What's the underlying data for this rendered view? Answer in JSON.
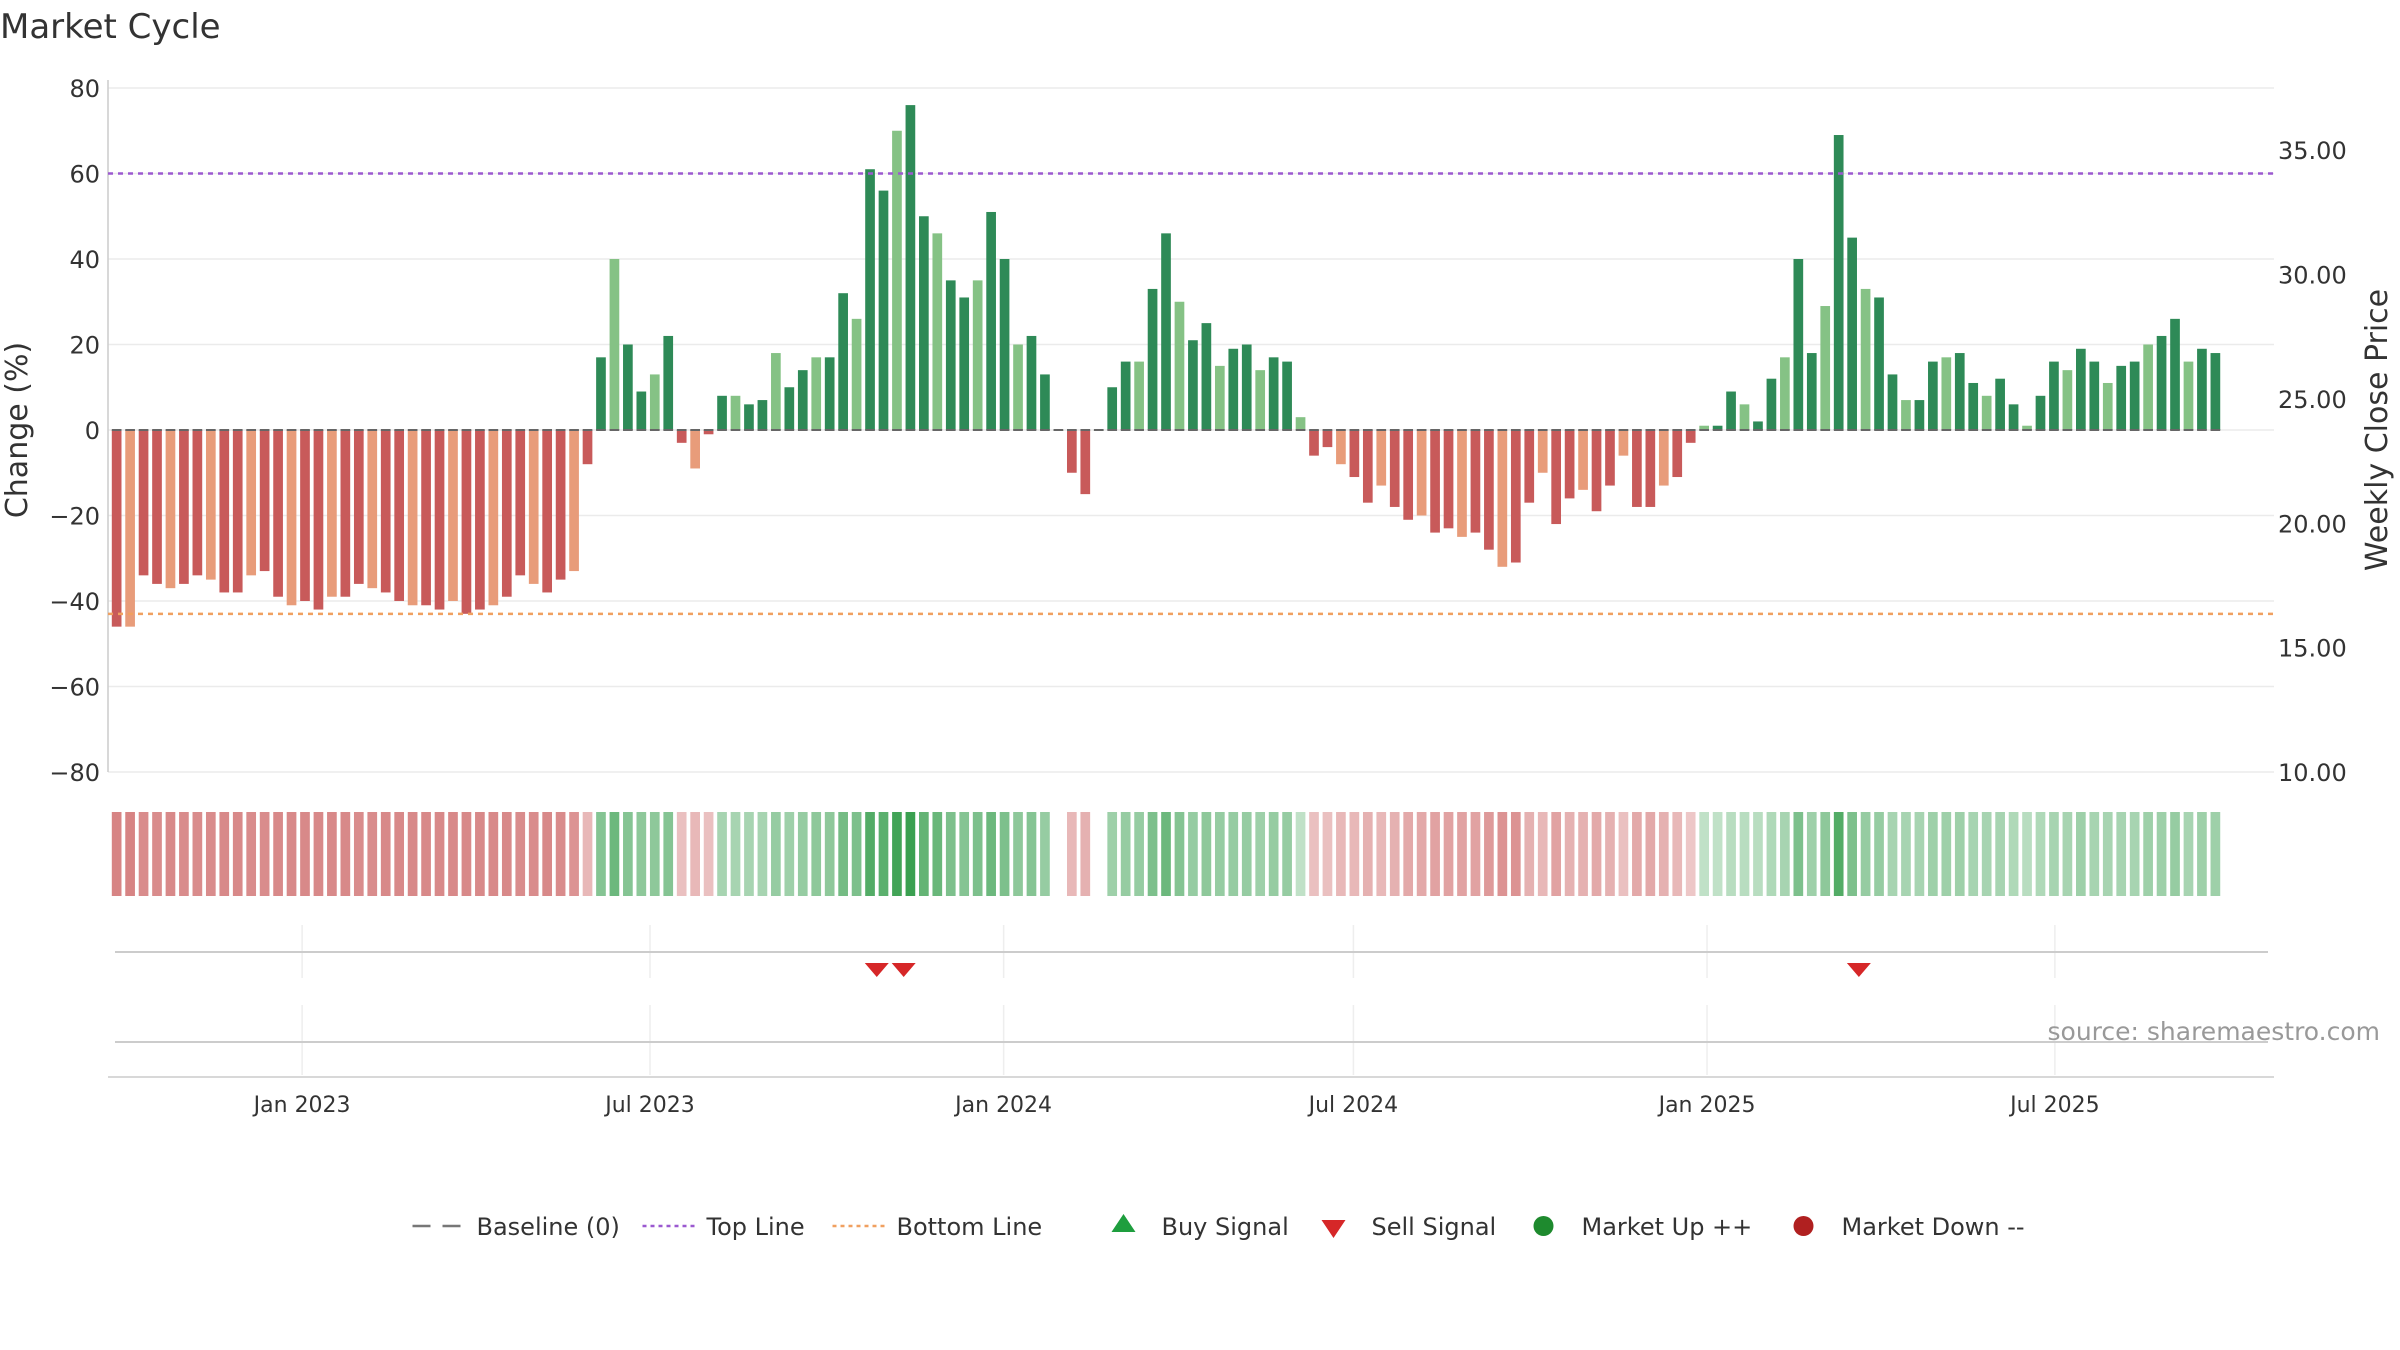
{
  "chart_data": {
    "type": "bar",
    "title": "Market Cycle",
    "ylabel": "Change (%)",
    "y2label": "Weekly Close Price",
    "ylim": [
      -80,
      80
    ],
    "y2lim": [
      10,
      37.5
    ],
    "yticks": [
      "80",
      "60",
      "40",
      "20",
      "0",
      "−20",
      "−40",
      "−60",
      "−80"
    ],
    "y2ticks": [
      "35.00",
      "30.00",
      "25.00",
      "20.00",
      "15.00",
      "10.00"
    ],
    "top_line": 60,
    "bottom_line": -43,
    "xlim": [
      "2022-09-22",
      "2025-10-23"
    ],
    "xticks": [
      {
        "date": "2023-01-01",
        "label": "Jan 2023"
      },
      {
        "date": "2023-07-01",
        "label": "Jul 2023"
      },
      {
        "date": "2024-01-01",
        "label": "Jan 2024"
      },
      {
        "date": "2024-07-01",
        "label": "Jul 2024"
      },
      {
        "date": "2025-01-01",
        "label": "Jan 2025"
      },
      {
        "date": "2025-07-01",
        "label": "Jul 2025"
      }
    ],
    "first_week": "2022-09-23",
    "interval_days": 7,
    "weekly_change": [
      -46,
      -46,
      -34,
      -36,
      -37,
      -36,
      -34,
      -35,
      -38,
      -38,
      -34,
      -33,
      -39,
      -41,
      -40,
      -42,
      -39,
      -39,
      -36,
      -37,
      -38,
      -40,
      -41,
      -41,
      -42,
      -40,
      -43,
      -42,
      -41,
      -39,
      -34,
      -36,
      -38,
      -35,
      -33,
      -8,
      17,
      40,
      20,
      9,
      13,
      22,
      -3,
      -9,
      -1,
      8,
      8,
      6,
      7,
      18,
      10,
      14,
      17,
      17,
      32,
      26,
      61,
      56,
      70,
      76,
      50,
      46,
      35,
      31,
      35,
      51,
      40,
      20,
      22,
      13,
      0,
      -10,
      -15,
      0,
      10,
      16,
      16,
      33,
      46,
      30,
      21,
      25,
      15,
      19,
      20,
      14,
      17,
      16,
      3,
      -6,
      -4,
      -8,
      -11,
      -17,
      -13,
      -18,
      -21,
      -20,
      -24,
      -23,
      -25,
      -24,
      -28,
      -32,
      -31,
      -17,
      -10,
      -22,
      -16,
      -14,
      -19,
      -13,
      -6,
      -18,
      -18,
      -13,
      -11,
      -3,
      1,
      1,
      9,
      6,
      2,
      12,
      17,
      40,
      18,
      29,
      69,
      45,
      33,
      31,
      13,
      7,
      7,
      16,
      17,
      18,
      11,
      8,
      12,
      6,
      1,
      8,
      16,
      14,
      19,
      16,
      11,
      15,
      16,
      20,
      22,
      26,
      16,
      19,
      18
    ],
    "weekly_strength": [
      0.65,
      0.65,
      0.6,
      0.6,
      0.62,
      0.6,
      0.6,
      0.6,
      0.62,
      0.62,
      0.6,
      0.6,
      0.62,
      0.62,
      0.62,
      0.62,
      0.62,
      0.62,
      0.6,
      0.6,
      0.62,
      0.62,
      0.62,
      0.62,
      0.62,
      0.62,
      0.62,
      0.62,
      0.62,
      0.62,
      0.6,
      0.6,
      0.62,
      0.6,
      0.55,
      0.3,
      0.55,
      0.7,
      0.55,
      0.5,
      0.5,
      0.55,
      0.25,
      0.3,
      0.25,
      0.35,
      0.35,
      0.35,
      0.35,
      0.45,
      0.4,
      0.45,
      0.5,
      0.5,
      0.65,
      0.6,
      0.85,
      0.8,
      0.95,
      1.0,
      0.75,
      0.72,
      0.6,
      0.55,
      0.6,
      0.7,
      0.6,
      0.5,
      0.55,
      0.45,
      0.0,
      0.3,
      0.35,
      0.0,
      0.4,
      0.45,
      0.45,
      0.6,
      0.7,
      0.55,
      0.45,
      0.5,
      0.45,
      0.45,
      0.45,
      0.4,
      0.45,
      0.45,
      0.2,
      0.25,
      0.25,
      0.3,
      0.3,
      0.35,
      0.3,
      0.35,
      0.4,
      0.4,
      0.45,
      0.45,
      0.45,
      0.45,
      0.5,
      0.55,
      0.55,
      0.35,
      0.3,
      0.45,
      0.35,
      0.35,
      0.4,
      0.35,
      0.25,
      0.4,
      0.4,
      0.35,
      0.3,
      0.2,
      0.2,
      0.2,
      0.25,
      0.25,
      0.25,
      0.3,
      0.35,
      0.6,
      0.4,
      0.5,
      0.85,
      0.6,
      0.45,
      0.45,
      0.35,
      0.35,
      0.35,
      0.4,
      0.4,
      0.4,
      0.35,
      0.35,
      0.35,
      0.3,
      0.25,
      0.3,
      0.35,
      0.35,
      0.4,
      0.35,
      0.35,
      0.35,
      0.35,
      0.4,
      0.4,
      0.45,
      0.35,
      0.4,
      0.4
    ],
    "sell_signals": [
      "2023-10-27",
      "2023-11-10",
      "2025-03-21"
    ],
    "buy_signals": [],
    "source": "source: sharemaestro.com",
    "legend": [
      {
        "label": "Baseline (0)",
        "style": "dash",
        "color": "#777777"
      },
      {
        "label": "Top Line",
        "style": "dot",
        "color": "#9b59d0"
      },
      {
        "label": "Bottom Line",
        "style": "dot",
        "color": "#f0a060"
      },
      {
        "label": "Buy Signal",
        "style": "triangle-up",
        "color": "#1e9e3e"
      },
      {
        "label": "Sell Signal",
        "style": "triangle-down",
        "color": "#d62728"
      },
      {
        "label": "Market Up ++",
        "style": "circle",
        "color": "#1e8a2e"
      },
      {
        "label": "Market Down --",
        "style": "circle",
        "color": "#b02020"
      }
    ],
    "colors": {
      "up_dark": "#2e8a57",
      "up_light": "#85c285",
      "down_dark": "#c85a5a",
      "down_light": "#e89c7a",
      "band_up": "#3aa050",
      "band_down": "#c65050",
      "top_line": "#9b59d0",
      "bottom_line": "#f0a060",
      "sell": "#d62728",
      "buy": "#1e9e3e"
    }
  }
}
